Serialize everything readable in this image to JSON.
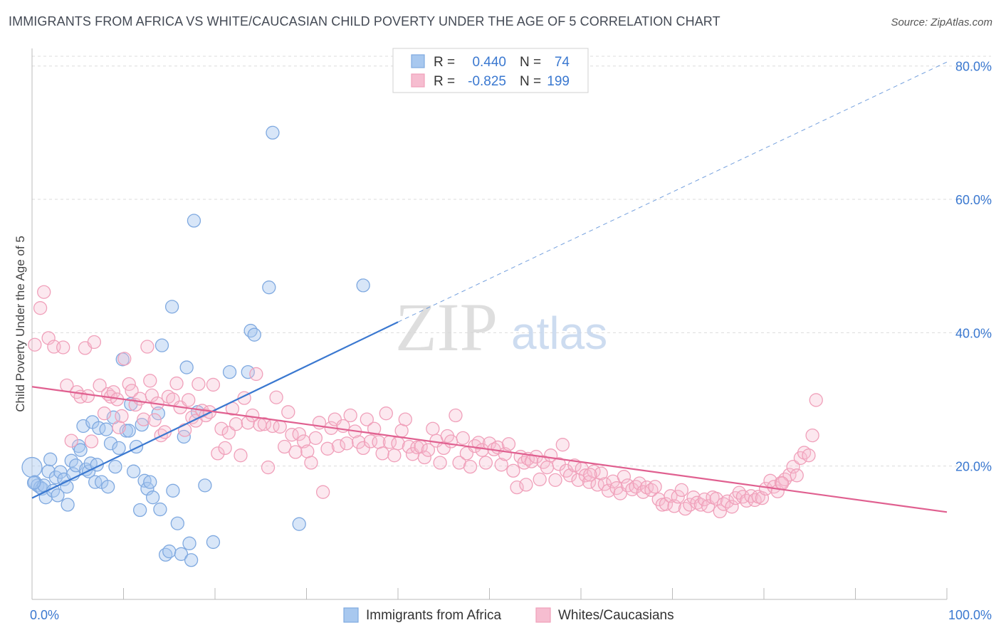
{
  "title": "IMMIGRANTS FROM AFRICA VS WHITE/CAUCASIAN CHILD POVERTY UNDER THE AGE OF 5 CORRELATION CHART",
  "source": "Source: ZipAtlas.com",
  "watermark": {
    "zip": "ZIP",
    "atlas": "atlas"
  },
  "stats": [
    {
      "r_label": "R =",
      "r_value": "0.440",
      "n_label": "N =",
      "n_value": "74",
      "color": "#7fa9e0"
    },
    {
      "r_label": "R =",
      "r_value": "-0.825",
      "n_label": "N =",
      "n_value": "199",
      "color": "#f0a0ba"
    }
  ],
  "legend": [
    {
      "label": "Immigrants from Africa",
      "color": "#7fa9e0"
    },
    {
      "label": "Whites/Caucasians",
      "color": "#f0a0ba"
    }
  ],
  "chart_data": {
    "type": "scatter",
    "ylabel": "Child Poverty Under the Age of 5",
    "xlabel": "",
    "xlim": [
      0,
      100
    ],
    "ylim": [
      0,
      82
    ],
    "x_tick_labels": [
      "0.0%",
      "100.0%"
    ],
    "y_ticks": [
      20,
      40,
      60,
      80
    ],
    "y_tick_labels": [
      "20.0%",
      "40.0%",
      "60.0%",
      "80.0%"
    ],
    "grid": true,
    "colors": {
      "blue": "#3a78d0",
      "blue_fill": "#a8c8ef",
      "pink": "#e06090",
      "pink_fill": "#f6bdd0",
      "axis_text": "#3a78d0"
    },
    "series": [
      {
        "name": "Immigrants from Africa",
        "color": "#7fa9e0",
        "trend": {
          "x": [
            0,
            40
          ],
          "y": [
            15.2,
            41.6
          ],
          "extended_to": [
            100,
            80.6
          ]
        },
        "points": [
          [
            0,
            19.8
          ],
          [
            0.3,
            17.6
          ],
          [
            0.6,
            17.1
          ],
          [
            0.9,
            16.8
          ],
          [
            1.1,
            16.6
          ],
          [
            1.3,
            17.1
          ],
          [
            1.5,
            15.3
          ],
          [
            1.8,
            19.2
          ],
          [
            2.0,
            21.0
          ],
          [
            2.3,
            16.3
          ],
          [
            2.6,
            18.3
          ],
          [
            2.8,
            15.6
          ],
          [
            3.1,
            19.1
          ],
          [
            3.5,
            18.0
          ],
          [
            3.8,
            16.9
          ],
          [
            3.9,
            14.2
          ],
          [
            4.3,
            20.8
          ],
          [
            4.5,
            18.8
          ],
          [
            4.8,
            20.1
          ],
          [
            5.1,
            23.0
          ],
          [
            5.3,
            22.4
          ],
          [
            5.6,
            26.0
          ],
          [
            5.9,
            19.5
          ],
          [
            6.2,
            19.2
          ],
          [
            6.4,
            20.4
          ],
          [
            6.6,
            26.6
          ],
          [
            6.9,
            17.6
          ],
          [
            7.1,
            20.2
          ],
          [
            7.3,
            25.7
          ],
          [
            7.6,
            17.6
          ],
          [
            8.1,
            25.5
          ],
          [
            8.3,
            16.9
          ],
          [
            8.6,
            23.4
          ],
          [
            8.9,
            27.3
          ],
          [
            9.1,
            19.9
          ],
          [
            9.5,
            22.7
          ],
          [
            9.9,
            36.0
          ],
          [
            10.3,
            25.3
          ],
          [
            10.6,
            25.3
          ],
          [
            10.8,
            29.3
          ],
          [
            11.1,
            19.2
          ],
          [
            11.4,
            22.9
          ],
          [
            11.8,
            13.4
          ],
          [
            12.0,
            26.2
          ],
          [
            12.3,
            17.8
          ],
          [
            12.6,
            16.6
          ],
          [
            12.9,
            17.6
          ],
          [
            13.2,
            15.3
          ],
          [
            13.8,
            27.9
          ],
          [
            14.0,
            13.5
          ],
          [
            14.2,
            38.1
          ],
          [
            14.6,
            6.7
          ],
          [
            15.0,
            7.2
          ],
          [
            15.3,
            43.9
          ],
          [
            15.4,
            16.3
          ],
          [
            15.9,
            11.4
          ],
          [
            16.3,
            6.8
          ],
          [
            16.6,
            24.4
          ],
          [
            16.9,
            34.8
          ],
          [
            17.2,
            8.4
          ],
          [
            17.4,
            5.9
          ],
          [
            17.7,
            56.8
          ],
          [
            18.1,
            28.1
          ],
          [
            18.9,
            17.1
          ],
          [
            19.8,
            8.6
          ],
          [
            21.6,
            34.1
          ],
          [
            23.6,
            34.1
          ],
          [
            23.9,
            40.3
          ],
          [
            24.3,
            39.7
          ],
          [
            25.9,
            46.8
          ],
          [
            26.3,
            70.0
          ],
          [
            29.2,
            11.3
          ],
          [
            36.2,
            47.1
          ],
          [
            0.2,
            17.5
          ]
        ]
      },
      {
        "name": "Whites/Caucasians",
        "color": "#f0a0ba",
        "trend": {
          "x": [
            0,
            100
          ],
          "y": [
            31.9,
            13.1
          ]
        },
        "points": [
          [
            0.3,
            38.2
          ],
          [
            0.9,
            43.7
          ],
          [
            1.3,
            46.1
          ],
          [
            1.8,
            39.2
          ],
          [
            2.4,
            37.9
          ],
          [
            3.4,
            37.8
          ],
          [
            3.8,
            32.1
          ],
          [
            4.3,
            23.8
          ],
          [
            4.9,
            31.1
          ],
          [
            5.3,
            30.4
          ],
          [
            5.8,
            37.7
          ],
          [
            6.1,
            30.5
          ],
          [
            6.5,
            23.7
          ],
          [
            6.8,
            38.6
          ],
          [
            7.4,
            32.1
          ],
          [
            7.9,
            27.9
          ],
          [
            8.3,
            30.8
          ],
          [
            8.6,
            30.4
          ],
          [
            8.9,
            31.1
          ],
          [
            9.3,
            30.0
          ],
          [
            9.5,
            25.8
          ],
          [
            9.8,
            27.5
          ],
          [
            10.1,
            36.1
          ],
          [
            10.6,
            32.3
          ],
          [
            10.9,
            31.3
          ],
          [
            11.3,
            29.2
          ],
          [
            11.8,
            30.1
          ],
          [
            12.2,
            27.0
          ],
          [
            12.6,
            37.9
          ],
          [
            12.9,
            32.8
          ],
          [
            13.1,
            30.6
          ],
          [
            13.4,
            26.9
          ],
          [
            13.7,
            29.4
          ],
          [
            14.1,
            24.6
          ],
          [
            14.5,
            25.1
          ],
          [
            14.9,
            30.4
          ],
          [
            15.4,
            30.0
          ],
          [
            15.8,
            32.4
          ],
          [
            16.2,
            28.8
          ],
          [
            16.7,
            25.4
          ],
          [
            17.1,
            29.9
          ],
          [
            17.5,
            27.3
          ],
          [
            17.9,
            26.8
          ],
          [
            18.2,
            32.3
          ],
          [
            18.6,
            28.3
          ],
          [
            19.0,
            27.6
          ],
          [
            19.4,
            28.1
          ],
          [
            19.8,
            32.2
          ],
          [
            20.3,
            21.9
          ],
          [
            20.7,
            25.6
          ],
          [
            21.1,
            22.7
          ],
          [
            21.5,
            25.0
          ],
          [
            21.9,
            28.6
          ],
          [
            22.3,
            26.3
          ],
          [
            22.8,
            21.6
          ],
          [
            23.2,
            30.2
          ],
          [
            23.6,
            26.5
          ],
          [
            24.1,
            27.6
          ],
          [
            24.5,
            33.8
          ],
          [
            24.9,
            26.2
          ],
          [
            25.4,
            26.3
          ],
          [
            25.8,
            19.8
          ],
          [
            26.3,
            26.0
          ],
          [
            26.7,
            30.3
          ],
          [
            27.1,
            25.9
          ],
          [
            27.6,
            22.9
          ],
          [
            28.0,
            28.1
          ],
          [
            28.4,
            24.7
          ],
          [
            28.8,
            22.1
          ],
          [
            29.2,
            24.8
          ],
          [
            29.7,
            23.7
          ],
          [
            30.1,
            22.2
          ],
          [
            30.5,
            20.5
          ],
          [
            31.0,
            24.2
          ],
          [
            31.4,
            26.5
          ],
          [
            31.8,
            16.1
          ],
          [
            32.3,
            22.6
          ],
          [
            32.7,
            25.7
          ],
          [
            33.1,
            27.0
          ],
          [
            33.5,
            23.0
          ],
          [
            34.0,
            26.0
          ],
          [
            34.4,
            23.4
          ],
          [
            34.8,
            27.6
          ],
          [
            35.3,
            25.2
          ],
          [
            35.7,
            23.6
          ],
          [
            36.2,
            22.7
          ],
          [
            36.6,
            27.0
          ],
          [
            37.0,
            23.7
          ],
          [
            37.4,
            25.6
          ],
          [
            37.9,
            23.6
          ],
          [
            38.3,
            21.9
          ],
          [
            38.7,
            27.9
          ],
          [
            39.1,
            23.6
          ],
          [
            39.6,
            21.6
          ],
          [
            40.0,
            23.4
          ],
          [
            40.4,
            25.3
          ],
          [
            40.8,
            27.0
          ],
          [
            41.2,
            22.9
          ],
          [
            41.6,
            21.8
          ],
          [
            42.1,
            22.8
          ],
          [
            42.5,
            22.9
          ],
          [
            42.9,
            21.3
          ],
          [
            43.3,
            22.4
          ],
          [
            43.8,
            25.6
          ],
          [
            44.2,
            23.8
          ],
          [
            44.6,
            20.5
          ],
          [
            45.0,
            22.7
          ],
          [
            45.4,
            24.5
          ],
          [
            45.8,
            23.7
          ],
          [
            46.3,
            27.6
          ],
          [
            46.7,
            20.5
          ],
          [
            47.1,
            24.2
          ],
          [
            47.5,
            21.9
          ],
          [
            47.9,
            19.9
          ],
          [
            48.4,
            23.0
          ],
          [
            48.8,
            23.5
          ],
          [
            49.2,
            22.4
          ],
          [
            49.6,
            20.5
          ],
          [
            50.0,
            23.4
          ],
          [
            50.5,
            22.5
          ],
          [
            50.9,
            22.8
          ],
          [
            51.3,
            20.2
          ],
          [
            51.7,
            21.8
          ],
          [
            52.1,
            23.3
          ],
          [
            52.6,
            19.3
          ],
          [
            53.0,
            16.8
          ],
          [
            53.4,
            21.4
          ],
          [
            53.8,
            20.5
          ],
          [
            54.2,
            21.1
          ],
          [
            54.6,
            20.7
          ],
          [
            55.1,
            21.4
          ],
          [
            55.5,
            18.0
          ],
          [
            55.9,
            20.6
          ],
          [
            56.3,
            19.8
          ],
          [
            56.7,
            21.6
          ],
          [
            57.2,
            17.9
          ],
          [
            57.6,
            20.3
          ],
          [
            58.0,
            23.2
          ],
          [
            58.4,
            19.3
          ],
          [
            58.8,
            18.6
          ],
          [
            59.3,
            20.1
          ],
          [
            59.7,
            17.9
          ],
          [
            60.1,
            19.6
          ],
          [
            60.5,
            18.6
          ],
          [
            60.9,
            17.6
          ],
          [
            61.4,
            19.2
          ],
          [
            61.8,
            17.2
          ],
          [
            62.2,
            18.9
          ],
          [
            62.6,
            17.3
          ],
          [
            63.0,
            16.3
          ],
          [
            63.5,
            17.7
          ],
          [
            63.9,
            16.7
          ],
          [
            64.3,
            15.9
          ],
          [
            64.7,
            18.4
          ],
          [
            65.1,
            17.1
          ],
          [
            65.6,
            16.5
          ],
          [
            66.0,
            16.9
          ],
          [
            66.4,
            17.4
          ],
          [
            66.8,
            16.1
          ],
          [
            67.2,
            16.8
          ],
          [
            67.7,
            16.4
          ],
          [
            68.1,
            16.9
          ],
          [
            68.5,
            15.0
          ],
          [
            68.9,
            14.2
          ],
          [
            69.3,
            14.3
          ],
          [
            69.8,
            15.5
          ],
          [
            70.2,
            14.0
          ],
          [
            70.6,
            15.4
          ],
          [
            71.0,
            16.4
          ],
          [
            71.4,
            13.6
          ],
          [
            71.9,
            14.2
          ],
          [
            72.3,
            15.3
          ],
          [
            72.7,
            14.5
          ],
          [
            73.1,
            14.2
          ],
          [
            73.5,
            15.0
          ],
          [
            73.9,
            14.0
          ],
          [
            74.4,
            15.3
          ],
          [
            74.8,
            15.1
          ],
          [
            75.2,
            13.2
          ],
          [
            75.6,
            14.3
          ],
          [
            76.0,
            14.7
          ],
          [
            76.5,
            13.9
          ],
          [
            76.9,
            15.2
          ],
          [
            77.3,
            16.0
          ],
          [
            77.7,
            15.4
          ],
          [
            78.1,
            14.8
          ],
          [
            78.6,
            15.5
          ],
          [
            79.0,
            14.9
          ],
          [
            79.4,
            15.4
          ],
          [
            79.8,
            15.2
          ],
          [
            80.2,
            16.6
          ],
          [
            80.7,
            17.8
          ],
          [
            81.1,
            16.9
          ],
          [
            81.5,
            16.2
          ],
          [
            81.9,
            17.5
          ],
          [
            82.3,
            18.0
          ],
          [
            82.8,
            18.7
          ],
          [
            83.2,
            19.9
          ],
          [
            83.6,
            18.6
          ],
          [
            84.0,
            21.2
          ],
          [
            84.4,
            22.0
          ],
          [
            84.9,
            21.6
          ],
          [
            85.3,
            24.6
          ],
          [
            85.7,
            29.9
          ],
          [
            54.0,
            17.2
          ],
          [
            61.0,
            18.7
          ],
          [
            82.0,
            17.4
          ]
        ]
      }
    ]
  }
}
